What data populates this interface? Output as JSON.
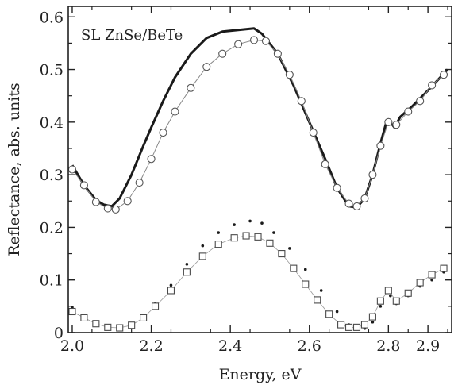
{
  "chart_data": {
    "type": "line",
    "title": "",
    "xlabel": "Energy, eV",
    "ylabel": "Reflectance, abs. units",
    "xlim": [
      1.99,
      2.96
    ],
    "ylim": [
      0,
      0.62
    ],
    "grid": false,
    "annotation": "SL ZnSe/BeTe",
    "x_ticks": [
      {
        "value": 2.0,
        "label": "2.0"
      },
      {
        "value": 2.2,
        "label": "2.2"
      },
      {
        "value": 2.4,
        "label": "2.4"
      },
      {
        "value": 2.6,
        "label": "2.6"
      },
      {
        "value": 2.8,
        "label": "2.8"
      },
      {
        "value": 2.9,
        "label": "2.9"
      }
    ],
    "y_ticks": [
      {
        "value": 0,
        "label": "0"
      },
      {
        "value": 0.1,
        "label": "0.1"
      },
      {
        "value": 0.2,
        "label": "0.2"
      },
      {
        "value": 0.3,
        "label": "0.3"
      },
      {
        "value": 0.4,
        "label": "0.4"
      },
      {
        "value": 0.5,
        "label": "0.5"
      },
      {
        "value": 0.6,
        "label": "0.6"
      }
    ],
    "series": [
      {
        "style": "thick-line",
        "color": "#1a1a1a",
        "x": [
          2.0,
          2.03,
          2.06,
          2.08,
          2.1,
          2.12,
          2.15,
          2.18,
          2.2,
          2.23,
          2.26,
          2.3,
          2.34,
          2.38,
          2.42,
          2.46,
          2.48,
          2.52,
          2.56,
          2.6,
          2.64,
          2.67,
          2.7,
          2.72,
          2.74,
          2.76,
          2.78,
          2.795,
          2.8,
          2.815,
          2.83,
          2.86,
          2.9,
          2.95
        ],
        "y": [
          0.318,
          0.28,
          0.252,
          0.243,
          0.24,
          0.255,
          0.3,
          0.355,
          0.39,
          0.44,
          0.485,
          0.53,
          0.56,
          0.572,
          0.575,
          0.578,
          0.568,
          0.53,
          0.47,
          0.4,
          0.33,
          0.275,
          0.24,
          0.238,
          0.255,
          0.3,
          0.36,
          0.4,
          0.405,
          0.39,
          0.41,
          0.43,
          0.46,
          0.5
        ]
      },
      {
        "style": "open-circles",
        "color": "#555555",
        "x": [
          2.0,
          2.03,
          2.06,
          2.09,
          2.11,
          2.14,
          2.17,
          2.2,
          2.23,
          2.26,
          2.3,
          2.34,
          2.38,
          2.42,
          2.46,
          2.49,
          2.52,
          2.55,
          2.58,
          2.61,
          2.64,
          2.67,
          2.7,
          2.72,
          2.74,
          2.76,
          2.78,
          2.8,
          2.82,
          2.85,
          2.88,
          2.91,
          2.94
        ],
        "y": [
          0.31,
          0.28,
          0.248,
          0.236,
          0.234,
          0.25,
          0.285,
          0.33,
          0.38,
          0.42,
          0.465,
          0.505,
          0.53,
          0.548,
          0.556,
          0.554,
          0.53,
          0.49,
          0.44,
          0.38,
          0.32,
          0.275,
          0.245,
          0.24,
          0.255,
          0.3,
          0.355,
          0.4,
          0.395,
          0.42,
          0.44,
          0.47,
          0.49
        ]
      },
      {
        "style": "small-dots",
        "color": "#1a1a1a",
        "x": [
          2.0,
          2.03,
          2.06,
          2.09,
          2.12,
          2.15,
          2.18,
          2.21,
          2.25,
          2.29,
          2.33,
          2.37,
          2.41,
          2.45,
          2.48,
          2.51,
          2.55,
          2.59,
          2.63,
          2.67,
          2.7,
          2.72,
          2.74,
          2.76,
          2.78,
          2.795,
          2.805,
          2.82,
          2.85,
          2.88,
          2.91,
          2.94
        ],
        "y": [
          0.048,
          0.032,
          0.02,
          0.012,
          0.01,
          0.015,
          0.03,
          0.055,
          0.09,
          0.13,
          0.165,
          0.19,
          0.205,
          0.212,
          0.208,
          0.19,
          0.16,
          0.12,
          0.08,
          0.04,
          0.015,
          0.008,
          0.008,
          0.02,
          0.05,
          0.08,
          0.07,
          0.055,
          0.07,
          0.088,
          0.1,
          0.115
        ]
      },
      {
        "style": "open-squares",
        "color": "#4a4a4a",
        "x": [
          2.0,
          2.03,
          2.06,
          2.09,
          2.12,
          2.15,
          2.18,
          2.21,
          2.25,
          2.29,
          2.33,
          2.37,
          2.41,
          2.44,
          2.47,
          2.5,
          2.53,
          2.56,
          2.59,
          2.62,
          2.65,
          2.68,
          2.7,
          2.72,
          2.74,
          2.76,
          2.78,
          2.8,
          2.82,
          2.85,
          2.88,
          2.91,
          2.94
        ],
        "y": [
          0.04,
          0.028,
          0.017,
          0.01,
          0.009,
          0.014,
          0.028,
          0.05,
          0.08,
          0.115,
          0.145,
          0.168,
          0.18,
          0.184,
          0.182,
          0.17,
          0.15,
          0.122,
          0.092,
          0.062,
          0.035,
          0.015,
          0.01,
          0.01,
          0.015,
          0.03,
          0.06,
          0.08,
          0.06,
          0.075,
          0.095,
          0.11,
          0.122
        ]
      }
    ]
  }
}
